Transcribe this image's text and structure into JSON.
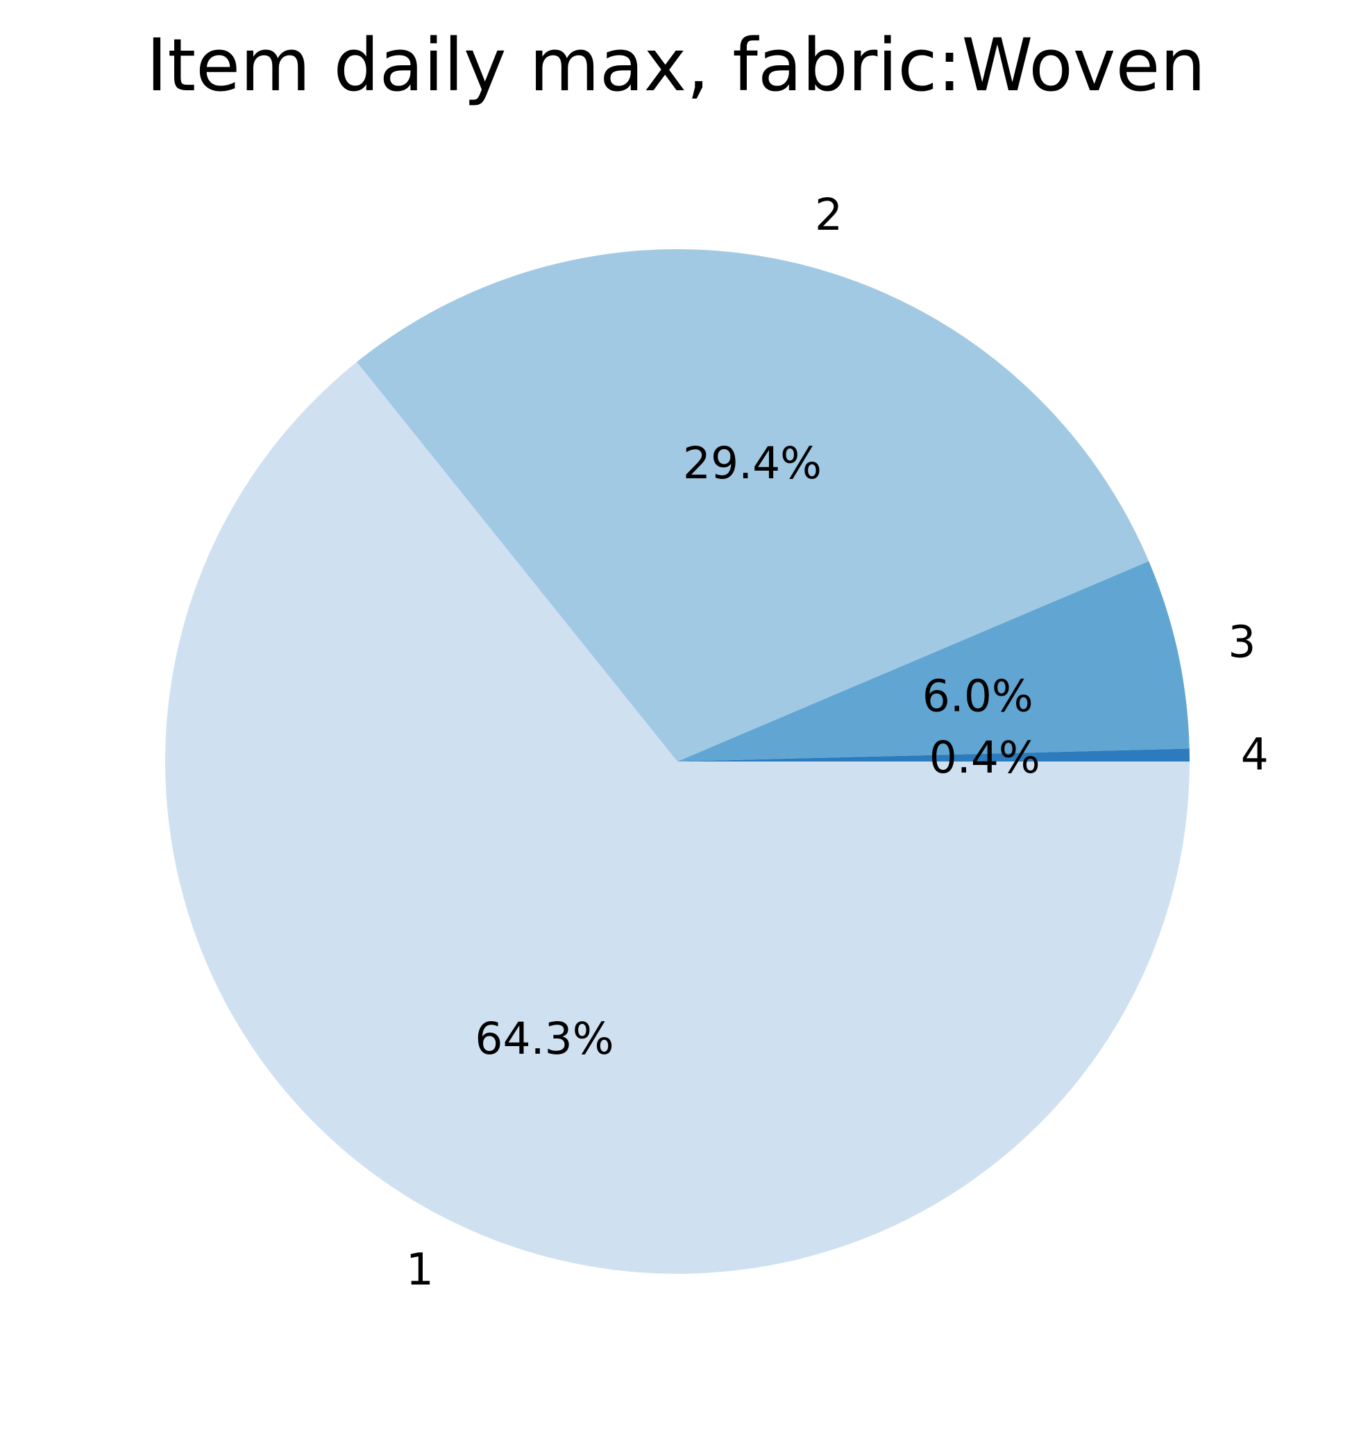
{
  "chart_data": {
    "type": "pie",
    "title": "Item daily max, fabric:Woven",
    "start_angle_deg": 0,
    "direction": "clockwise",
    "slices": [
      {
        "label": "1",
        "value": 64.3,
        "pct_label": "64.3%",
        "color": "#cfe1f1"
      },
      {
        "label": "2",
        "value": 29.4,
        "pct_label": "29.4%",
        "color": "#a2c9e3"
      },
      {
        "label": "3",
        "value": 6.0,
        "pct_label": "6.0%",
        "color": "#61a6d2"
      },
      {
        "label": "4",
        "value": 0.4,
        "pct_label": "0.4%",
        "color": "#2b7bbd"
      }
    ]
  }
}
